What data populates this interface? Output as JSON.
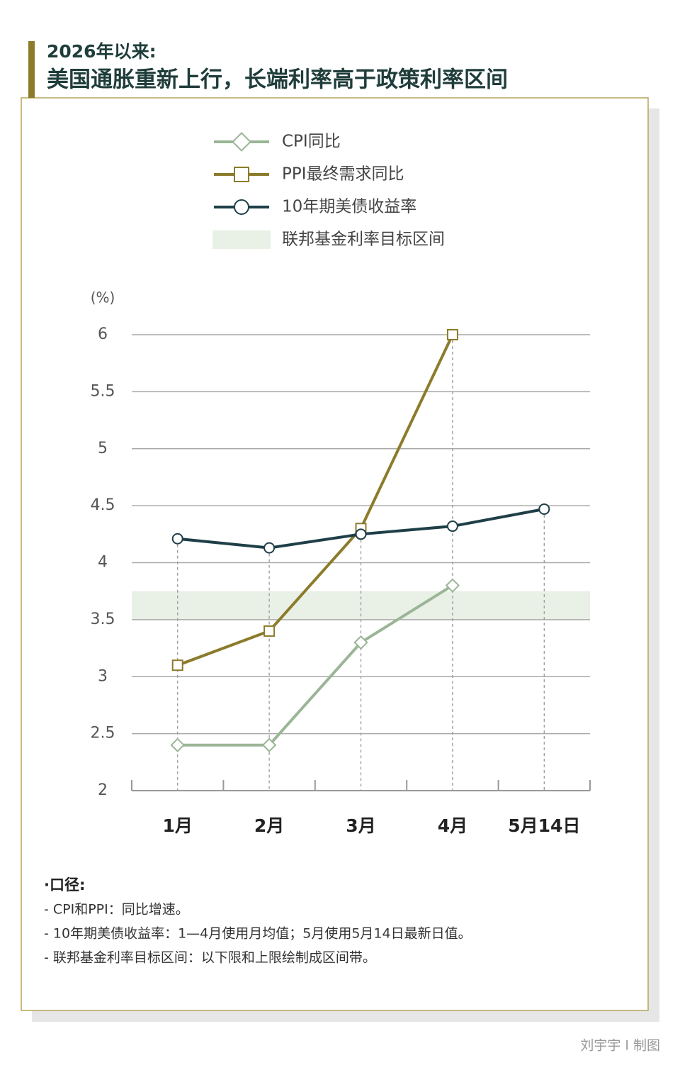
{
  "header": {
    "kicker": "2026年以来:",
    "title": "美国通胀重新上行，长端利率高于政策利率区间"
  },
  "chart_data": {
    "type": "line",
    "ylabel": "(%)",
    "categories": [
      "1月",
      "2月",
      "3月",
      "4月",
      "5月14日"
    ],
    "series": [
      {
        "name": "CPI同比",
        "color": "#9bb597",
        "marker": "diamond",
        "values": [
          2.4,
          2.4,
          3.3,
          3.8,
          null
        ]
      },
      {
        "name": "PPI最终需求同比",
        "color": "#8c7b2b",
        "marker": "square",
        "values": [
          3.1,
          3.4,
          4.3,
          6.0,
          null
        ]
      },
      {
        "name": "10年期美债收益率",
        "color": "#1f3f48",
        "marker": "circle",
        "values": [
          4.21,
          4.13,
          4.25,
          4.32,
          4.47
        ]
      }
    ],
    "band": {
      "name": "联邦基金利率目标区间",
      "range": [
        3.5,
        3.75
      ],
      "color": "#e9f0e6"
    },
    "ylim": [
      2,
      6
    ],
    "yticks": [
      2,
      2.5,
      3,
      3.5,
      4,
      4.5,
      5,
      5.5,
      6
    ],
    "grid": true
  },
  "notes": {
    "heading": "·口径:",
    "lines": [
      "- CPI和PPI：同比增速。",
      "- 10年期美债收益率：1—4月使用月均值；5月使用5月14日最新日值。",
      "- 联邦基金利率目标区间：以下限和上限绘制成区间带。"
    ]
  },
  "credit": "刘宇宇 I 制图"
}
